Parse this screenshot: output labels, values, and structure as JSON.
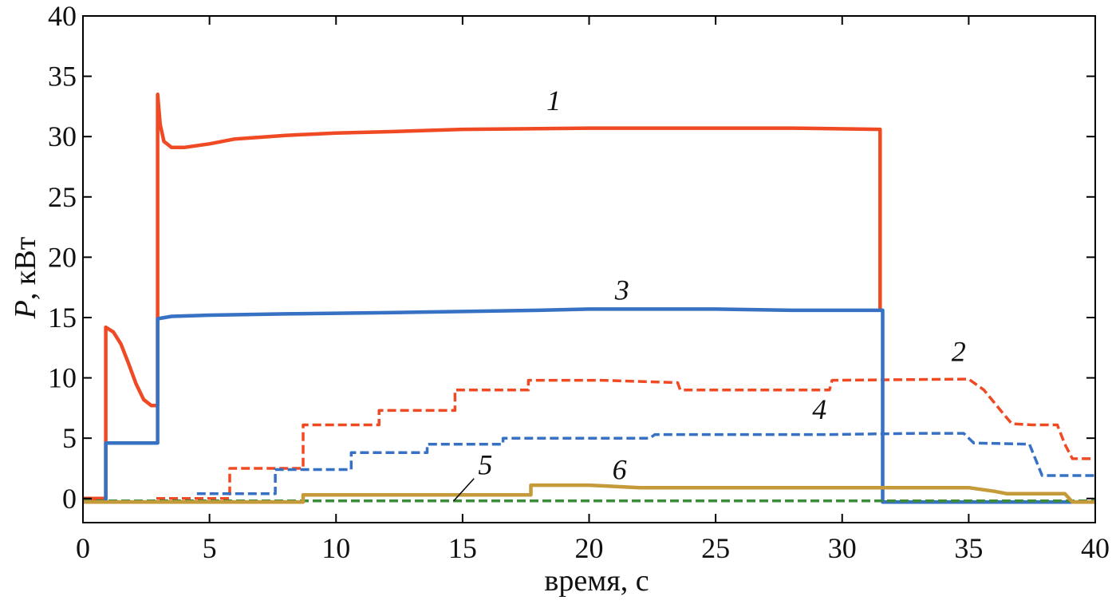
{
  "chart_data": {
    "type": "line",
    "title": "",
    "xlabel": "время, с",
    "ylabel_symbol": "P",
    "ylabel_unit": ", кВт",
    "xlim": [
      0,
      40
    ],
    "ylim": [
      -2,
      40
    ],
    "x_ticks": [
      0,
      5,
      10,
      15,
      20,
      25,
      30,
      35,
      40
    ],
    "y_ticks": [
      0,
      5,
      10,
      15,
      20,
      25,
      30,
      35,
      40
    ],
    "grid": false,
    "legend": "none",
    "series": [
      {
        "name": "1",
        "color": "#f04a24",
        "dashed": false,
        "label_at": [
          18.6,
          32.2
        ],
        "points": [
          [
            0,
            0
          ],
          [
            0.9,
            0
          ],
          [
            0.9,
            14.2
          ],
          [
            1.2,
            13.8
          ],
          [
            1.5,
            12.8
          ],
          [
            1.8,
            11.2
          ],
          [
            2.1,
            9.5
          ],
          [
            2.4,
            8.2
          ],
          [
            2.7,
            7.7
          ],
          [
            2.95,
            7.7
          ],
          [
            2.95,
            33.5
          ],
          [
            3.05,
            31
          ],
          [
            3.2,
            29.6
          ],
          [
            3.5,
            29.1
          ],
          [
            4,
            29.1
          ],
          [
            5,
            29.4
          ],
          [
            6,
            29.8
          ],
          [
            8,
            30.1
          ],
          [
            10,
            30.3
          ],
          [
            12,
            30.4
          ],
          [
            15,
            30.6
          ],
          [
            20,
            30.7
          ],
          [
            25,
            30.7
          ],
          [
            28,
            30.7
          ],
          [
            31.5,
            30.6
          ],
          [
            31.5,
            15.5
          ]
        ]
      },
      {
        "name": "2",
        "color": "#f04a24",
        "dashed": true,
        "label_at": [
          34.6,
          11.4
        ],
        "points": [
          [
            2.9,
            0
          ],
          [
            5.8,
            0
          ],
          [
            5.8,
            2.5
          ],
          [
            8.7,
            2.5
          ],
          [
            8.7,
            6.1
          ],
          [
            11.7,
            6.1
          ],
          [
            11.7,
            7.3
          ],
          [
            14.7,
            7.3
          ],
          [
            14.7,
            9
          ],
          [
            17.6,
            9
          ],
          [
            17.6,
            9.8
          ],
          [
            20.5,
            9.8
          ],
          [
            23.5,
            9.6
          ],
          [
            23.6,
            9
          ],
          [
            29.5,
            9
          ],
          [
            29.6,
            9.8
          ],
          [
            35,
            9.9
          ],
          [
            35.6,
            9
          ],
          [
            36.3,
            7.2
          ],
          [
            36.7,
            6.2
          ],
          [
            37.5,
            6.1
          ],
          [
            38.5,
            6.1
          ],
          [
            38.8,
            4.5
          ],
          [
            39.1,
            3.3
          ],
          [
            40,
            3.3
          ]
        ]
      },
      {
        "name": "3",
        "color": "#3771c3",
        "dashed": false,
        "label_at": [
          21.3,
          16.5
        ],
        "points": [
          [
            0,
            -0.3
          ],
          [
            0.9,
            -0.3
          ],
          [
            0.9,
            4.6
          ],
          [
            2.95,
            4.6
          ],
          [
            2.95,
            14.9
          ],
          [
            3.5,
            15.1
          ],
          [
            5,
            15.2
          ],
          [
            8,
            15.3
          ],
          [
            12,
            15.4
          ],
          [
            15,
            15.5
          ],
          [
            18,
            15.6
          ],
          [
            20,
            15.7
          ],
          [
            25,
            15.7
          ],
          [
            28,
            15.6
          ],
          [
            31.6,
            15.6
          ],
          [
            31.6,
            -0.3
          ],
          [
            40,
            -0.3
          ]
        ]
      },
      {
        "name": "4",
        "color": "#3771c3",
        "dashed": true,
        "label_at": [
          29.1,
          6.6
        ],
        "points": [
          [
            4.5,
            0.4
          ],
          [
            7.6,
            0.4
          ],
          [
            7.6,
            2.4
          ],
          [
            10.6,
            2.4
          ],
          [
            10.6,
            3.8
          ],
          [
            13.6,
            3.8
          ],
          [
            13.6,
            4.5
          ],
          [
            16.6,
            4.5
          ],
          [
            16.6,
            5
          ],
          [
            22.4,
            5
          ],
          [
            22.6,
            5.3
          ],
          [
            27,
            5.3
          ],
          [
            29.5,
            5.3
          ],
          [
            33,
            5.4
          ],
          [
            34.8,
            5.4
          ],
          [
            35.2,
            4.6
          ],
          [
            37.4,
            4.5
          ],
          [
            37.9,
            1.9
          ],
          [
            40,
            1.9
          ]
        ]
      },
      {
        "name": "5",
        "color": "#3e8c3a",
        "dashed": true,
        "label_at": [
          15.9,
          2.0
        ],
        "points": [
          [
            0,
            -0.2
          ],
          [
            40,
            -0.2
          ]
        ]
      },
      {
        "name": "6",
        "color": "#c59a3a",
        "dashed": false,
        "label_at": [
          21.2,
          1.6
        ],
        "points": [
          [
            0,
            -0.3
          ],
          [
            8.7,
            -0.3
          ],
          [
            8.7,
            0.3
          ],
          [
            17.7,
            0.3
          ],
          [
            17.7,
            1.1
          ],
          [
            20,
            1.1
          ],
          [
            22,
            0.9
          ],
          [
            30,
            0.9
          ],
          [
            35,
            0.9
          ],
          [
            36,
            0.6
          ],
          [
            36.5,
            0.4
          ],
          [
            38.8,
            0.4
          ],
          [
            39.1,
            -0.3
          ],
          [
            40,
            -0.3
          ]
        ]
      }
    ]
  }
}
